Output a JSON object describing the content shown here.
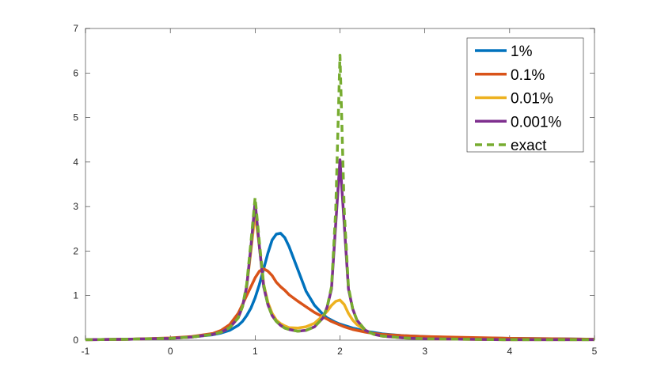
{
  "chart_data": {
    "type": "line",
    "x": [
      -1,
      -0.5,
      0,
      0.25,
      0.5,
      0.6,
      0.7,
      0.8,
      0.85,
      0.9,
      0.95,
      1.0,
      1.05,
      1.1,
      1.15,
      1.2,
      1.25,
      1.3,
      1.35,
      1.4,
      1.5,
      1.6,
      1.7,
      1.8,
      1.85,
      1.9,
      1.95,
      2.0,
      2.05,
      2.1,
      2.15,
      2.2,
      2.3,
      2.4,
      2.5,
      2.75,
      3,
      3.5,
      4,
      4.5,
      5
    ],
    "series": [
      {
        "name": "1%",
        "color": "#0072bd",
        "dashed": false,
        "values": [
          0.01,
          0.02,
          0.04,
          0.07,
          0.12,
          0.16,
          0.22,
          0.33,
          0.42,
          0.55,
          0.72,
          0.95,
          1.25,
          1.6,
          1.95,
          2.25,
          2.38,
          2.4,
          2.3,
          2.1,
          1.6,
          1.1,
          0.78,
          0.58,
          0.5,
          0.45,
          0.4,
          0.36,
          0.33,
          0.3,
          0.27,
          0.25,
          0.2,
          0.17,
          0.14,
          0.1,
          0.08,
          0.05,
          0.04,
          0.03,
          0.02
        ]
      },
      {
        "name": "0.1%",
        "color": "#d95319",
        "dashed": false,
        "values": [
          0.01,
          0.02,
          0.05,
          0.08,
          0.15,
          0.22,
          0.35,
          0.6,
          0.8,
          1.0,
          1.2,
          1.4,
          1.55,
          1.6,
          1.55,
          1.45,
          1.3,
          1.2,
          1.12,
          1.02,
          0.88,
          0.75,
          0.62,
          0.52,
          0.47,
          0.42,
          0.38,
          0.34,
          0.3,
          0.27,
          0.24,
          0.22,
          0.18,
          0.15,
          0.13,
          0.1,
          0.08,
          0.06,
          0.04,
          0.03,
          0.02
        ]
      },
      {
        "name": "0.01%",
        "color": "#edb120",
        "dashed": false,
        "values": [
          0.01,
          0.02,
          0.04,
          0.07,
          0.13,
          0.18,
          0.28,
          0.5,
          0.75,
          1.2,
          2.0,
          2.85,
          2.1,
          1.25,
          0.85,
          0.6,
          0.45,
          0.37,
          0.32,
          0.28,
          0.27,
          0.3,
          0.38,
          0.55,
          0.65,
          0.78,
          0.87,
          0.9,
          0.8,
          0.6,
          0.45,
          0.35,
          0.22,
          0.13,
          0.09,
          0.05,
          0.03,
          0.02,
          0.01,
          0.01,
          0.01
        ]
      },
      {
        "name": "0.001%",
        "color": "#7e2f8e",
        "dashed": false,
        "values": [
          0.01,
          0.02,
          0.04,
          0.07,
          0.13,
          0.18,
          0.28,
          0.5,
          0.75,
          1.2,
          2.1,
          3.1,
          2.1,
          1.2,
          0.8,
          0.55,
          0.42,
          0.33,
          0.27,
          0.24,
          0.2,
          0.22,
          0.3,
          0.5,
          0.75,
          1.15,
          2.6,
          4.05,
          2.6,
          1.15,
          0.7,
          0.45,
          0.22,
          0.13,
          0.09,
          0.05,
          0.03,
          0.02,
          0.01,
          0.01,
          0.01
        ]
      },
      {
        "name": "exact",
        "color": "#77ac30",
        "dashed": true,
        "values": [
          0.01,
          0.02,
          0.04,
          0.07,
          0.13,
          0.18,
          0.28,
          0.5,
          0.75,
          1.25,
          2.2,
          3.2,
          2.2,
          1.25,
          0.8,
          0.55,
          0.42,
          0.33,
          0.27,
          0.24,
          0.2,
          0.22,
          0.3,
          0.5,
          0.75,
          1.2,
          2.9,
          6.4,
          2.9,
          1.2,
          0.7,
          0.45,
          0.22,
          0.13,
          0.09,
          0.05,
          0.03,
          0.02,
          0.01,
          0.01,
          0.01
        ]
      }
    ],
    "xlim": [
      -1,
      5
    ],
    "xticks": [
      -1,
      0,
      1,
      2,
      3,
      4,
      5
    ],
    "ylim": [
      0,
      7
    ],
    "yticks": [
      0,
      1,
      2,
      3,
      4,
      5,
      6,
      7
    ],
    "legend": "top-right"
  }
}
